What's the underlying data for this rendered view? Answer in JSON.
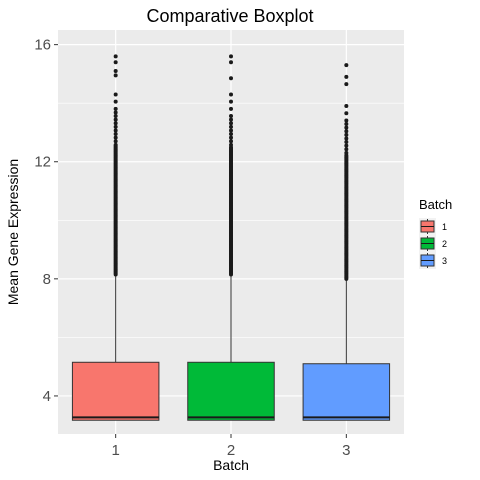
{
  "chart_data": {
    "type": "boxplot",
    "title": "Comparative Boxplot",
    "xlabel": "Batch",
    "ylabel": "Mean Gene Expression",
    "ylim": [
      2.7,
      16.5
    ],
    "yticks": [
      4,
      8,
      12,
      16
    ],
    "grid": true,
    "legend": {
      "title": "Batch",
      "position": "right"
    },
    "categories": [
      "1",
      "2",
      "3"
    ],
    "series": [
      {
        "name": "1",
        "color": "#F8766D",
        "whisker_low": 3.17,
        "q1": 3.17,
        "median": 3.27,
        "q3": 5.15,
        "whisker_high": 8.15,
        "outliers_range": [
          8.15,
          14.5
        ],
        "outliers_extra": [
          14.95,
          15.1,
          15.4,
          15.6
        ]
      },
      {
        "name": "2",
        "color": "#00BA38",
        "whisker_low": 3.17,
        "q1": 3.17,
        "median": 3.27,
        "q3": 5.15,
        "whisker_high": 8.15,
        "outliers_range": [
          8.15,
          14.4
        ],
        "outliers_extra": [
          14.85,
          15.4,
          15.6
        ]
      },
      {
        "name": "3",
        "color": "#619CFF",
        "whisker_low": 3.17,
        "q1": 3.17,
        "median": 3.27,
        "q3": 5.1,
        "whisker_high": 8.0,
        "outliers_range": [
          8.0,
          14.1
        ],
        "outliers_extra": [
          14.65,
          14.9,
          15.3
        ]
      }
    ]
  }
}
